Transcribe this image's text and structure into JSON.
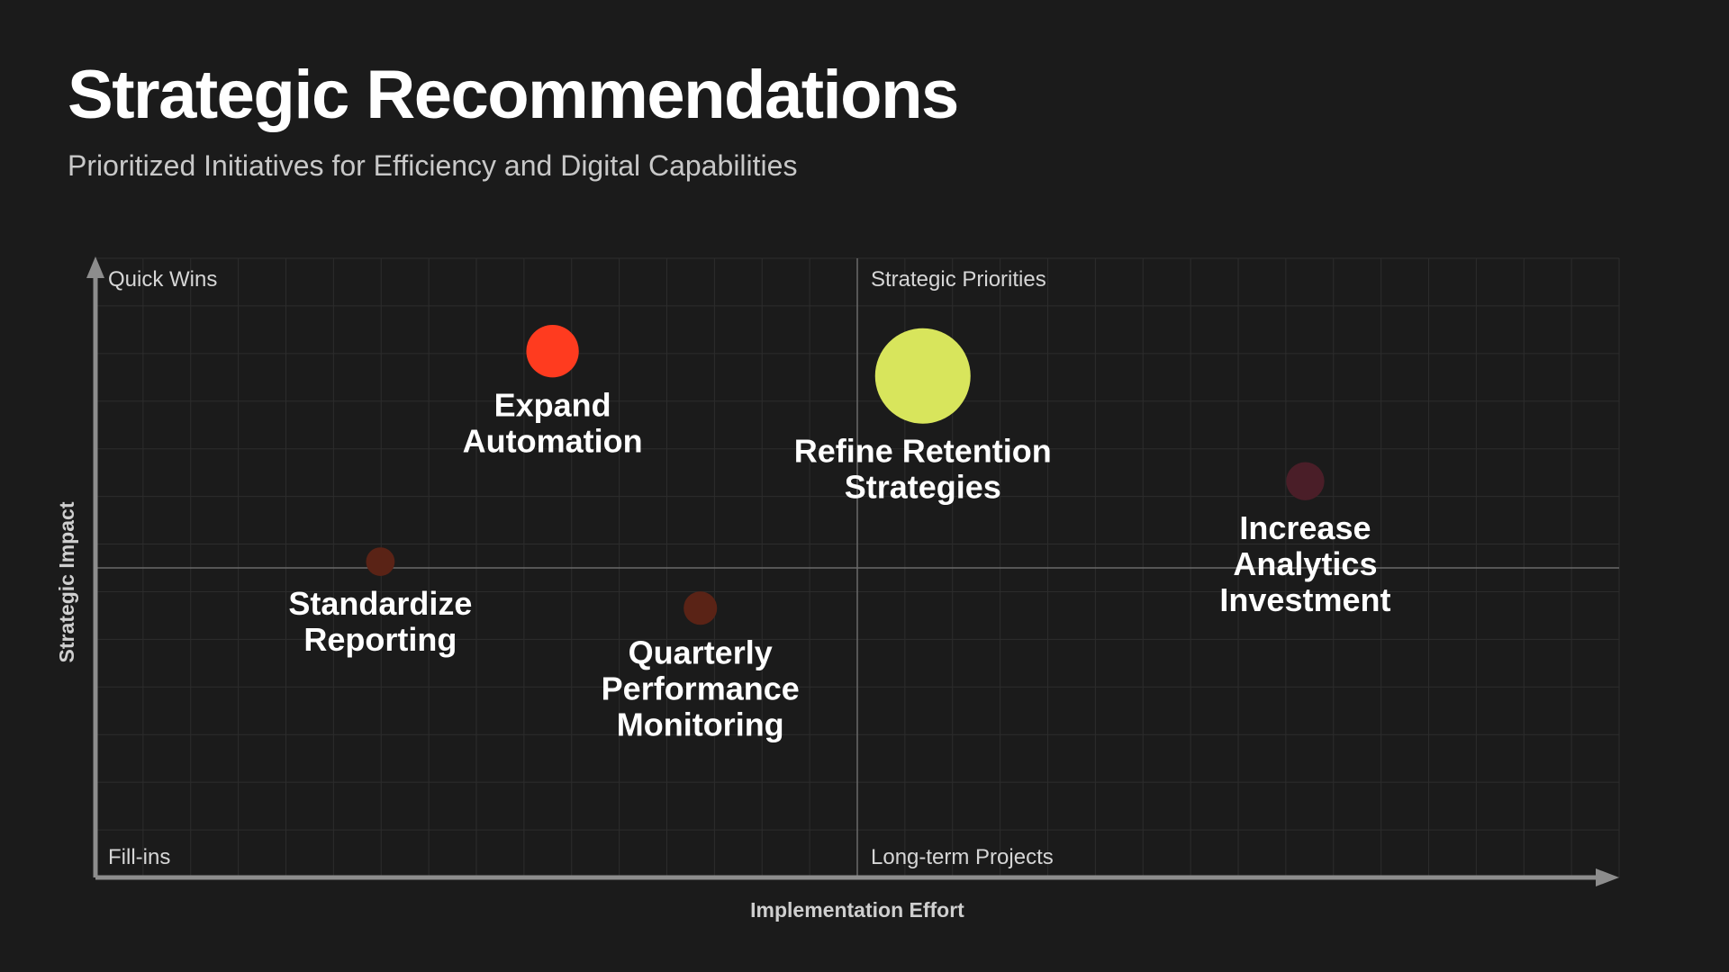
{
  "header": {
    "title": "Strategic Recommendations",
    "subtitle": "Prioritized Initiatives for Efficiency and Digital Capabilities"
  },
  "chart_data": {
    "type": "scatter",
    "title": "Strategic Recommendations",
    "subtitle": "Prioritized Initiatives for Efficiency and Digital Capabilities",
    "xlabel": "Implementation Effort",
    "ylabel": "Strategic Impact",
    "xlim": [
      0,
      10
    ],
    "ylim": [
      0,
      10
    ],
    "grid": true,
    "quadrants": {
      "top_left": "Quick Wins",
      "top_right": "Strategic Priorities",
      "bottom_left": "Fill-ins",
      "bottom_right": "Long-term Projects"
    },
    "points": [
      {
        "label": [
          "Expand",
          "Automation"
        ],
        "x": 3.0,
        "y": 8.5,
        "size": 0.55,
        "color": "#ff3b1f"
      },
      {
        "label": [
          "Refine Retention",
          "Strategies"
        ],
        "x": 5.43,
        "y": 8.1,
        "size": 1.0,
        "color": "#d8e55c"
      },
      {
        "label": [
          "Increase",
          "Analytics",
          "Investment"
        ],
        "x": 7.94,
        "y": 6.4,
        "size": 0.4,
        "color": "#4a1e28"
      },
      {
        "label": [
          "Standardize",
          "Reporting"
        ],
        "x": 1.87,
        "y": 5.1,
        "size": 0.3,
        "color": "#5a2316"
      },
      {
        "label": [
          "Quarterly",
          "Performance",
          "Monitoring"
        ],
        "x": 3.97,
        "y": 4.35,
        "size": 0.35,
        "color": "#5a2316"
      }
    ]
  }
}
